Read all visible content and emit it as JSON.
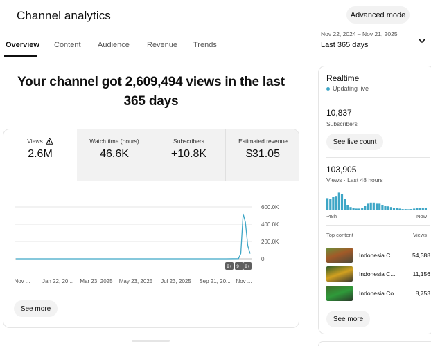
{
  "header": {
    "title": "Channel analytics",
    "advanced_mode": "Advanced mode"
  },
  "tabs": [
    {
      "label": "Overview"
    },
    {
      "label": "Content"
    },
    {
      "label": "Audience"
    },
    {
      "label": "Revenue"
    },
    {
      "label": "Trends"
    }
  ],
  "date_picker": {
    "range": "Nov 22, 2024 – Nov 21, 2025",
    "label": "Last 365 days"
  },
  "headline": "Your channel got 2,609,494 views in the last 365 days",
  "metrics": [
    {
      "label": "Views",
      "value": "2.6M"
    },
    {
      "label": "Watch time (hours)",
      "value": "46.6K"
    },
    {
      "label": "Subscribers",
      "value": "+10.8K"
    },
    {
      "label": "Estimated revenue",
      "value": "$31.05"
    }
  ],
  "chart_data": {
    "type": "line",
    "x_tick_labels": [
      "Nov ...",
      "Jan 22, 20...",
      "Mar 23, 2025",
      "May 23, 2025",
      "Jul 23, 2025",
      "Sep 21, 20...",
      "Nov ..."
    ],
    "y_tick_labels": [
      "600.0K",
      "400.0K",
      "200.0K",
      "0"
    ],
    "ylim": [
      0,
      600000
    ],
    "grid": true,
    "annotations": [
      "9+",
      "9+",
      "9+"
    ],
    "series": [
      {
        "color": "#3ea6c6",
        "x": [
          0,
          5,
          10,
          15,
          20,
          25,
          30,
          35,
          40,
          45,
          50,
          55,
          60,
          65,
          70,
          75,
          80,
          85,
          90,
          95,
          96,
          97,
          98,
          99,
          100
        ],
        "values": [
          0,
          0,
          0,
          0,
          0,
          0,
          0,
          0,
          0,
          0,
          0,
          0,
          0,
          0,
          0,
          0,
          0,
          0,
          0,
          2000,
          60000,
          520000,
          420000,
          150000,
          60000
        ]
      }
    ]
  },
  "see_more_label": "See more",
  "realtime": {
    "title": "Realtime",
    "status": "Updating live",
    "subscribers_count": "10,837",
    "subscribers_label": "Subscribers",
    "see_live_count": "See live count",
    "views_count": "103,905",
    "views_label": "Views · Last 48 hours",
    "axis_start": "-48h",
    "axis_end": "Now",
    "bars": [
      0.55,
      0.5,
      0.6,
      0.65,
      0.8,
      0.75,
      0.5,
      0.25,
      0.15,
      0.1,
      0.08,
      0.08,
      0.1,
      0.2,
      0.3,
      0.35,
      0.35,
      0.3,
      0.3,
      0.25,
      0.2,
      0.18,
      0.15,
      0.12,
      0.1,
      0.08,
      0.06,
      0.06,
      0.05,
      0.06,
      0.08,
      0.1,
      0.12,
      0.12,
      0.1
    ],
    "top_content_label": "Top content",
    "views_header": "Views",
    "top_items": [
      {
        "title": "Indonesia C...",
        "views": "54,388"
      },
      {
        "title": "Indonesia C...",
        "views": "11,156"
      },
      {
        "title": "Indonesia Co...",
        "views": "8,753"
      }
    ],
    "see_more": "See more"
  },
  "colors": {
    "accent": "#3ea6c6",
    "pill_bg": "#f2f2f2"
  }
}
